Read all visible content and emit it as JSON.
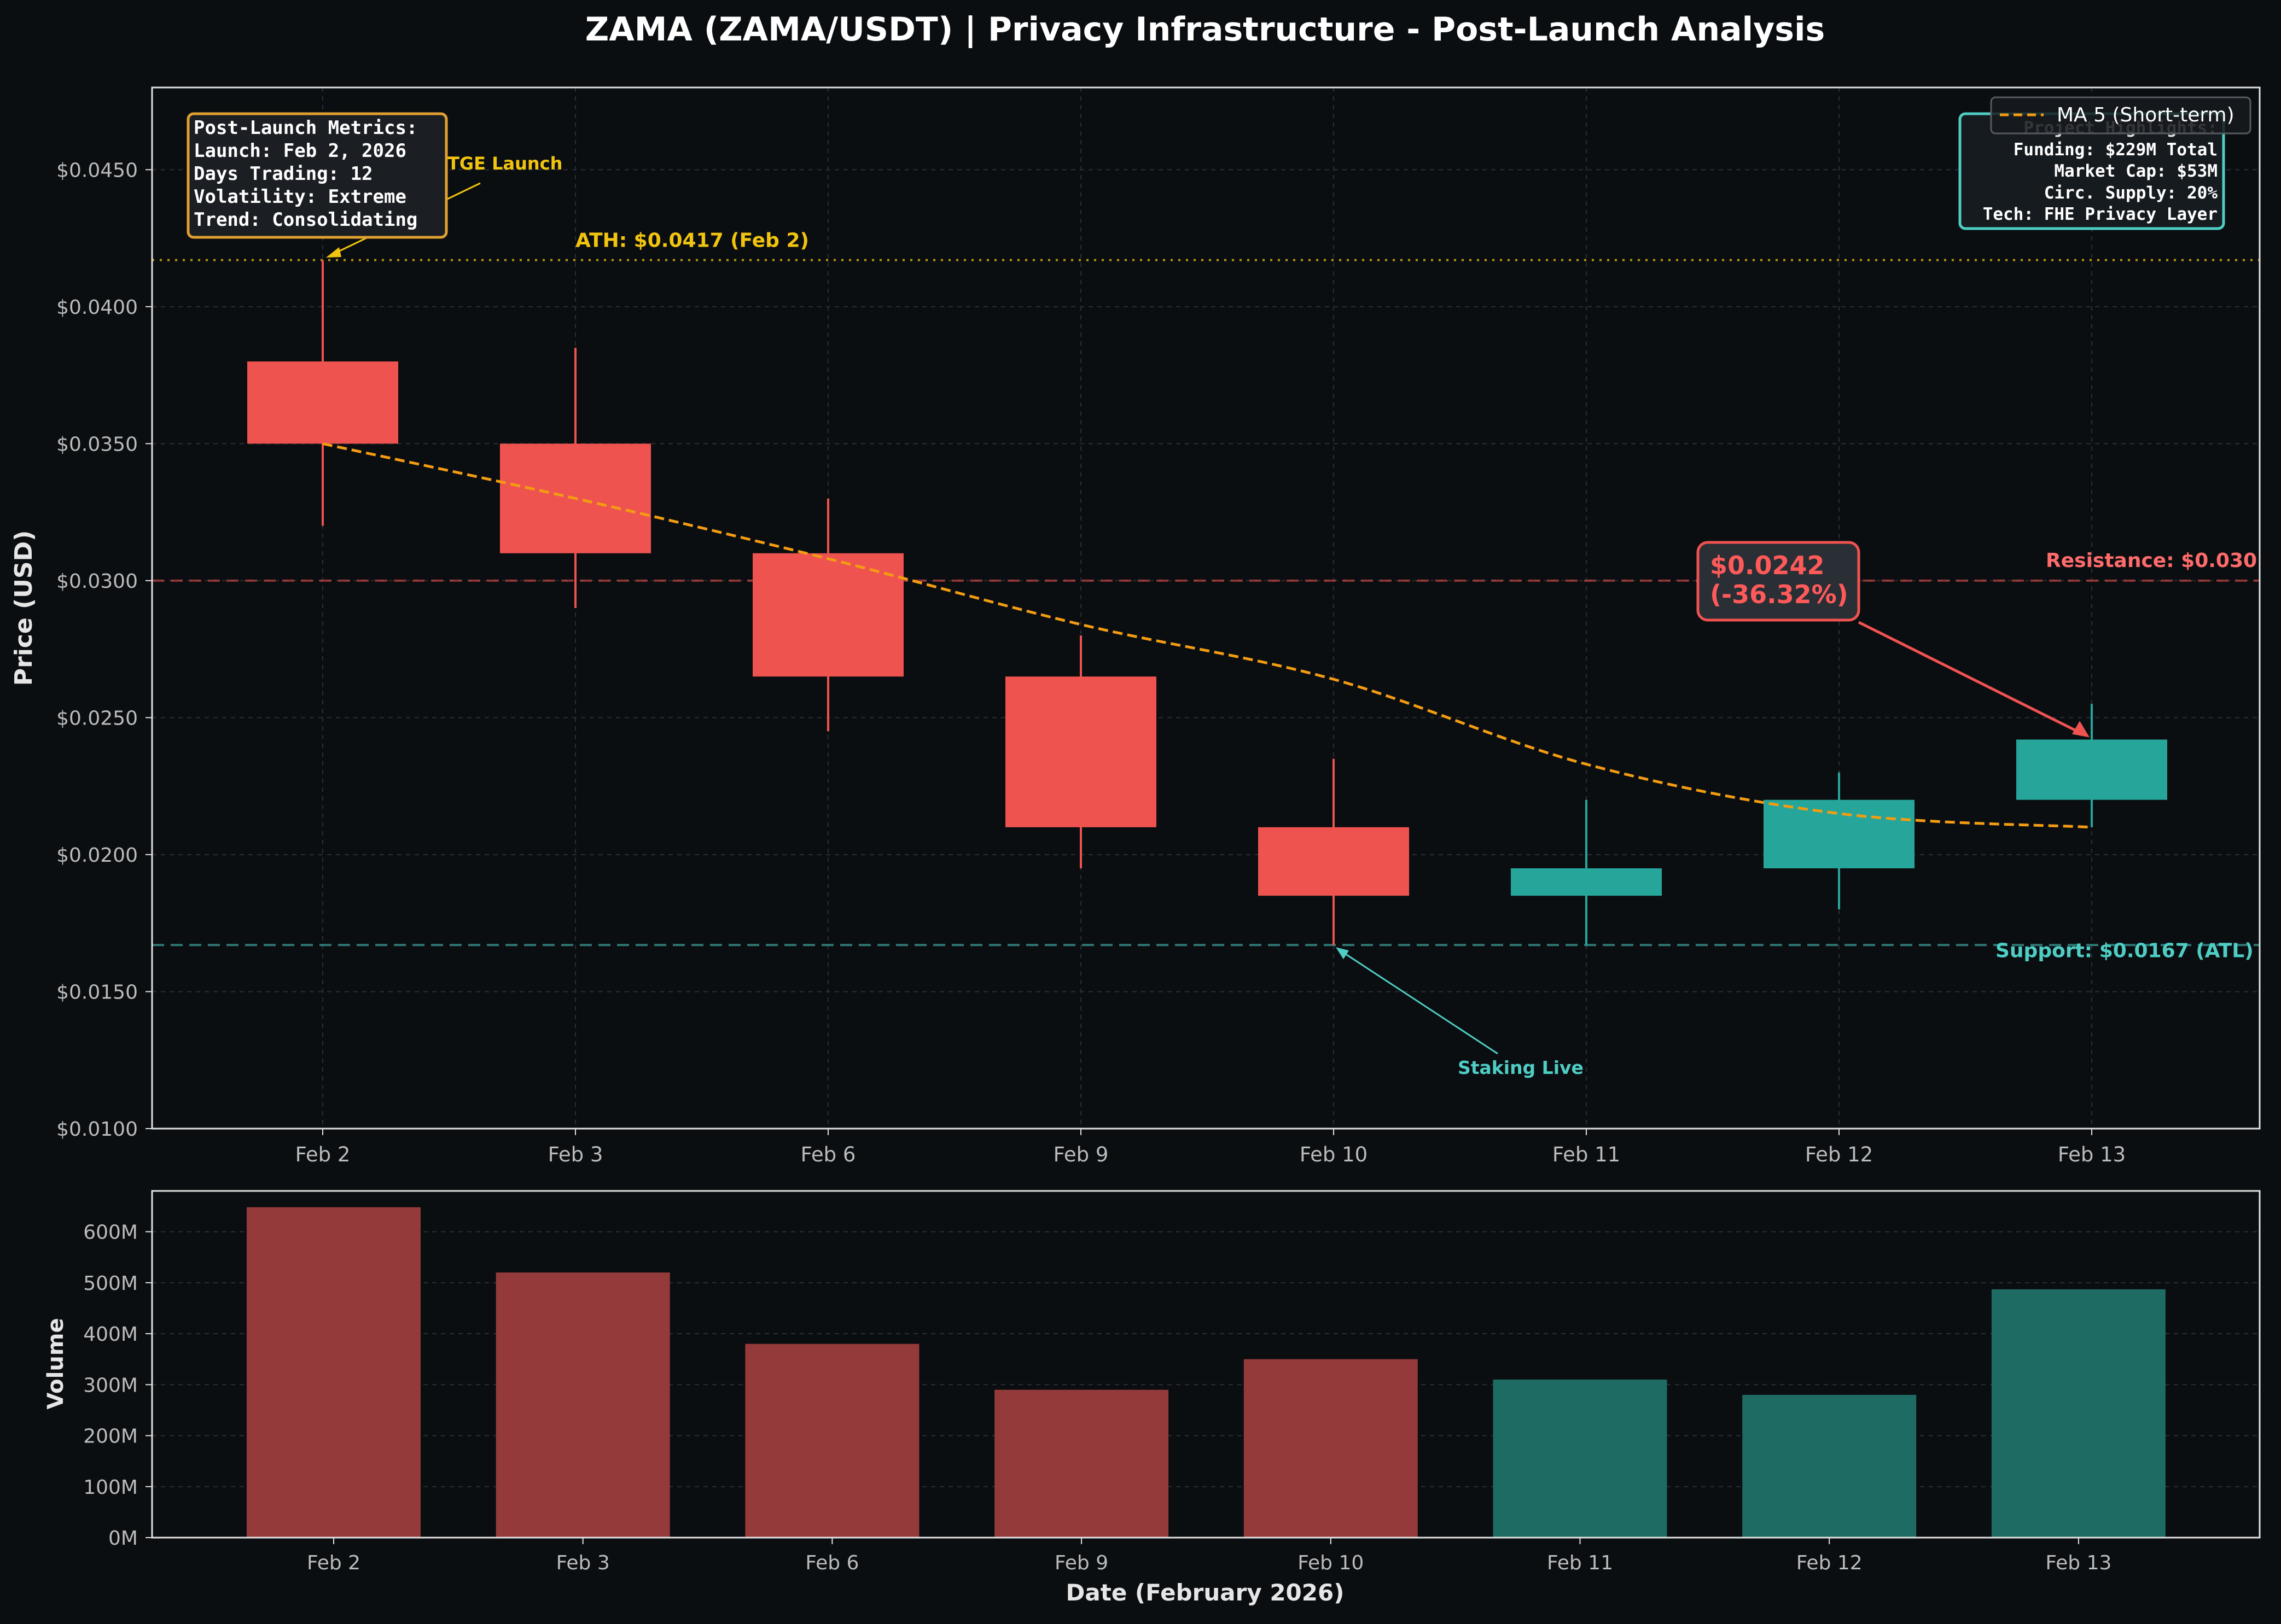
{
  "colors": {
    "background": "#0b0e11",
    "up": "#26a69a",
    "down": "#ef5350",
    "up_volume": "#1e6b63",
    "down_volume": "#943a3a",
    "ma": "#f39c12",
    "ath": "#f1c40f",
    "resistance": "#ef5350",
    "support": "#4ecdc4",
    "text": "#ffffff",
    "axis_text": "#bbbbbb",
    "grid": "#2a2e33"
  },
  "title": "ZAMA (ZAMA/USDT) | Privacy Infrastructure - Post-Launch Analysis",
  "chart_data": [
    {
      "type": "candlestick",
      "ylabel": "Price (USD)",
      "ylim": [
        0.01,
        0.048
      ],
      "yticks": [
        "$0.0100",
        "$0.0150",
        "$0.0200",
        "$0.0250",
        "$0.0300",
        "$0.0350",
        "$0.0400",
        "$0.0450"
      ],
      "categories": [
        "Feb 2",
        "Feb 3",
        "Feb 6",
        "Feb 9",
        "Feb 10",
        "Feb 11",
        "Feb 12",
        "Feb 13"
      ],
      "open": [
        0.038,
        0.035,
        0.031,
        0.0265,
        0.021,
        0.0185,
        0.0195,
        0.022
      ],
      "high": [
        0.0417,
        0.0385,
        0.033,
        0.028,
        0.0235,
        0.022,
        0.023,
        0.0255
      ],
      "low": [
        0.032,
        0.029,
        0.0245,
        0.0195,
        0.0167,
        0.0167,
        0.018,
        0.021
      ],
      "close": [
        0.035,
        0.031,
        0.0265,
        0.021,
        0.0185,
        0.0195,
        0.022,
        0.0242
      ],
      "ma": {
        "name": "MA 5 (Short-term)",
        "values": [
          0.035,
          0.033,
          0.0308,
          0.0284,
          0.0264,
          0.0233,
          0.0215,
          0.021
        ]
      },
      "grid": true,
      "legend": "top-right",
      "lines": {
        "ath": {
          "value": 0.0417,
          "label": "ATH: $0.0417 (Feb 2)"
        },
        "resistance": {
          "value": 0.03,
          "label": "Resistance: $0.030"
        },
        "support": {
          "value": 0.0167,
          "label": "Support: $0.0167 (ATL)"
        }
      },
      "annotations": {
        "tge": "TGE Launch",
        "staking": "Staking Live",
        "current_price": "$0.0242",
        "current_change": "(-36.32%)"
      }
    },
    {
      "type": "bar",
      "xlabel": "Date (February 2026)",
      "ylabel": "Volume",
      "ylim": [
        0,
        680
      ],
      "yticks": [
        "0M",
        "100M",
        "200M",
        "300M",
        "400M",
        "500M",
        "600M"
      ],
      "categories": [
        "Feb 2",
        "Feb 3",
        "Feb 6",
        "Feb 9",
        "Feb 10",
        "Feb 11",
        "Feb 12",
        "Feb 13"
      ],
      "values": [
        648,
        520,
        380,
        290,
        350,
        310,
        280,
        487
      ],
      "grid": true
    }
  ],
  "metrics_box": {
    "lines": [
      "Post-Launch Metrics:",
      "Launch: Feb 2, 2026",
      "Days Trading: 12",
      "Volatility: Extreme",
      "Trend: Consolidating"
    ]
  },
  "highlights_box": {
    "lines": [
      "Project Highlights:",
      "Funding: $229M Total",
      "Market Cap: $53M",
      "Circ. Supply: 20%",
      "Tech: FHE Privacy Layer"
    ]
  }
}
